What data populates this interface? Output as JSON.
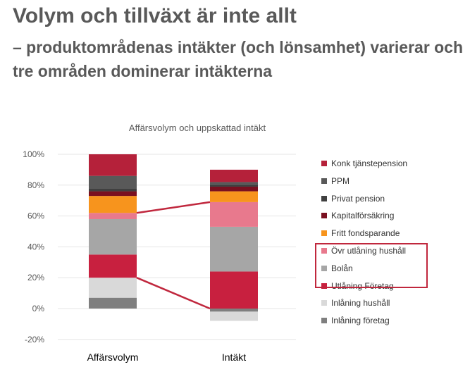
{
  "page": {
    "title": "Volym och tillväxt är inte allt",
    "subtitle": "– produktområdenas intäkter (och lönsamhet) varierar och tre områden dominerar intäkterna"
  },
  "chart_data": {
    "type": "bar",
    "stacked": true,
    "title": "Affärsvolym och uppskattad intäkt",
    "categories": [
      "Affärsvolym",
      "Intäkt"
    ],
    "ylim": [
      -20,
      100
    ],
    "yticks": [
      "-20%",
      "0%",
      "20%",
      "40%",
      "60%",
      "80%",
      "100%"
    ],
    "ytick_values": [
      -20,
      0,
      20,
      40,
      60,
      80,
      100
    ],
    "grid": true,
    "legend_position": "right",
    "series": [
      {
        "name": "Inlåning företag",
        "color": "#7f7f7f",
        "values": [
          7,
          -2
        ]
      },
      {
        "name": "Inlåning hushåll",
        "color": "#d9d9d9",
        "values": [
          13,
          -6
        ]
      },
      {
        "name": "Utlåning Företag",
        "color": "#c8203f",
        "values": [
          15,
          24
        ]
      },
      {
        "name": "Bolån",
        "color": "#a6a6a6",
        "values": [
          23,
          29
        ]
      },
      {
        "name": "Övr utlåning hushåll",
        "color": "#e8798d",
        "values": [
          4,
          16
        ]
      },
      {
        "name": "Fritt fondsparande",
        "color": "#f7941d",
        "values": [
          11,
          7
        ]
      },
      {
        "name": "Kapitalförsäkring",
        "color": "#7a1020",
        "values": [
          3,
          3
        ]
      },
      {
        "name": "Privat pension",
        "color": "#404040",
        "values": [
          2,
          1.5
        ]
      },
      {
        "name": "PPM",
        "color": "#595959",
        "values": [
          8,
          1.5
        ]
      },
      {
        "name": "Konk tjänstepension",
        "color": "#b5213a",
        "values": [
          14,
          8
        ]
      }
    ],
    "highlighted_series": [
      "Övr utlåning hushåll",
      "Bolån",
      "Utlåning Företag"
    ],
    "highlight_color": "#c0273d"
  }
}
